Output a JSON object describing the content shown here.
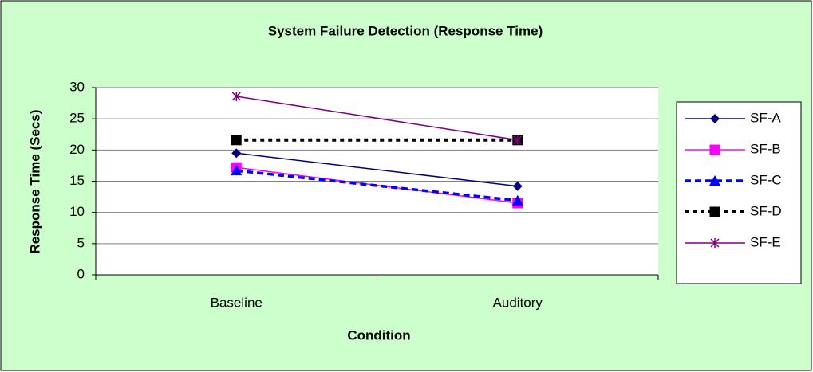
{
  "chart_data": {
    "type": "line",
    "title": "System Failure Detection (Response Time)",
    "x_label": "Condition",
    "y_label": "Response Time (Secs)",
    "categories": [
      "Baseline",
      "Auditory"
    ],
    "series": [
      {
        "name": "SF-A",
        "color": "#000080",
        "marker": "diamond",
        "dash": "solid",
        "values": [
          19.5,
          14.2
        ]
      },
      {
        "name": "SF-B",
        "color": "#ff00ff",
        "marker": "square",
        "dash": "solid",
        "values": [
          17.2,
          11.5
        ]
      },
      {
        "name": "SF-C",
        "color": "#0000ff",
        "marker": "triangle",
        "dash": "dashed",
        "values": [
          16.7,
          11.9
        ]
      },
      {
        "name": "SF-D",
        "color": "#000000",
        "marker": "square",
        "dash": "dotted",
        "values": [
          21.6,
          21.6
        ]
      },
      {
        "name": "SF-E",
        "color": "#800080",
        "marker": "star",
        "dash": "solid",
        "values": [
          28.6,
          21.6
        ]
      }
    ],
    "ylim": [
      0,
      30
    ],
    "yticks": [
      0,
      5,
      10,
      15,
      20,
      25,
      30
    ],
    "grid": true,
    "legend": "right"
  }
}
